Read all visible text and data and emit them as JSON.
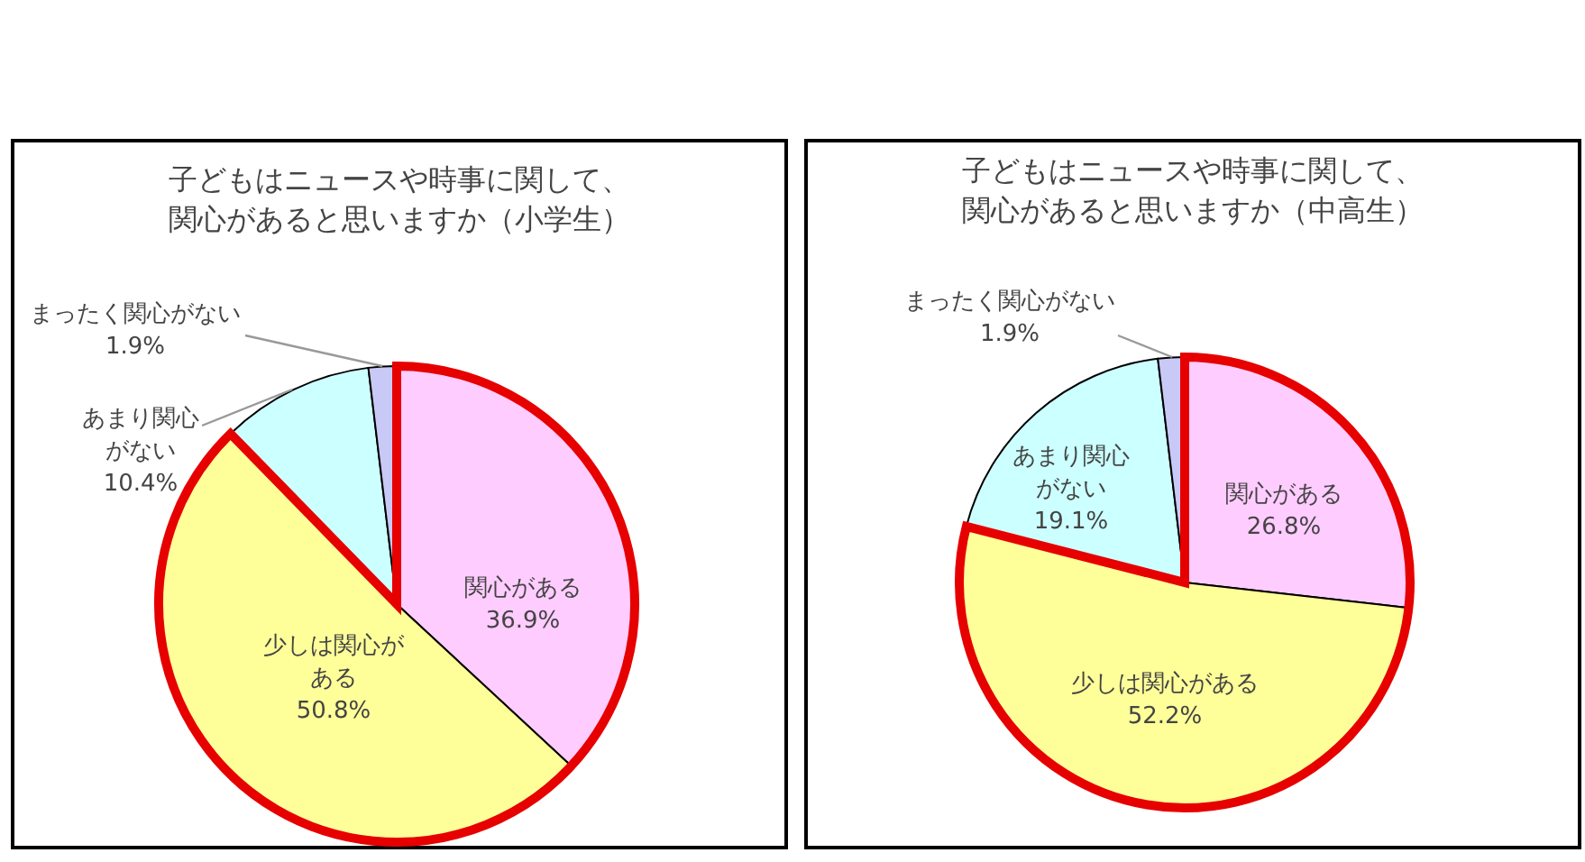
{
  "chart_data": [
    {
      "type": "pie",
      "title": "子どもはニュースや時事に関して、関心があると思いますか（小学生）",
      "categories": [
        "関心がある",
        "少しは関心がある",
        "あまり関心がない",
        "まったく関心がない"
      ],
      "values": [
        36.9,
        50.8,
        10.4,
        1.9
      ],
      "value_labels": [
        "36.9%",
        "50.8%",
        "10.4%",
        "1.9%"
      ],
      "colors": [
        "#ffccff",
        "#ffff99",
        "#ccffff",
        "#c9c9f7"
      ]
    },
    {
      "type": "pie",
      "title": "子どもはニュースや時事に関して、関心があると思いますか（中高生）",
      "categories": [
        "関心がある",
        "少しは関心がある",
        "あまり関心がない",
        "まったく関心がない"
      ],
      "values": [
        26.8,
        52.2,
        19.1,
        1.9
      ],
      "value_labels": [
        "26.8%",
        "52.2%",
        "19.1%",
        "1.9%"
      ],
      "colors": [
        "#ffccff",
        "#ffff99",
        "#ccffff",
        "#c9c9f7"
      ]
    }
  ]
}
